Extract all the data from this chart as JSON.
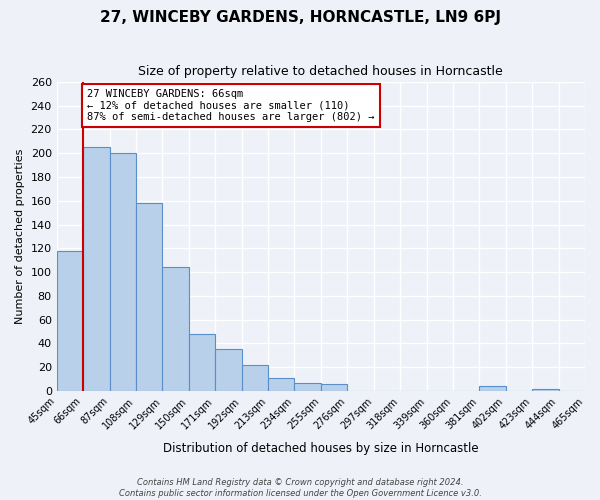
{
  "title": "27, WINCEBY GARDENS, HORNCASTLE, LN9 6PJ",
  "subtitle": "Size of property relative to detached houses in Horncastle",
  "xlabel": "Distribution of detached houses by size in Horncastle",
  "ylabel": "Number of detached properties",
  "bar_values": [
    118,
    205,
    200,
    158,
    104,
    48,
    35,
    22,
    11,
    7,
    6,
    0,
    0,
    0,
    0,
    0,
    4,
    0,
    2,
    0
  ],
  "bin_labels": [
    "45sqm",
    "66sqm",
    "87sqm",
    "108sqm",
    "129sqm",
    "150sqm",
    "171sqm",
    "192sqm",
    "213sqm",
    "234sqm",
    "255sqm",
    "276sqm",
    "297sqm",
    "318sqm",
    "339sqm",
    "360sqm",
    "381sqm",
    "402sqm",
    "423sqm",
    "444sqm",
    "465sqm"
  ],
  "bar_color": "#b8d0ea",
  "bar_edge_color": "#5b8fc9",
  "property_line_x": 1,
  "annotation_text": "27 WINCEBY GARDENS: 66sqm\n← 12% of detached houses are smaller (110)\n87% of semi-detached houses are larger (802) →",
  "annotation_box_color": "#ffffff",
  "annotation_border_color": "#cc0000",
  "red_line_color": "#cc0000",
  "ylim": [
    0,
    260
  ],
  "yticks": [
    0,
    20,
    40,
    60,
    80,
    100,
    120,
    140,
    160,
    180,
    200,
    220,
    240,
    260
  ],
  "footer_line1": "Contains HM Land Registry data © Crown copyright and database right 2024.",
  "footer_line2": "Contains public sector information licensed under the Open Government Licence v3.0.",
  "background_color": "#eef2f8",
  "grid_color": "#ffffff"
}
